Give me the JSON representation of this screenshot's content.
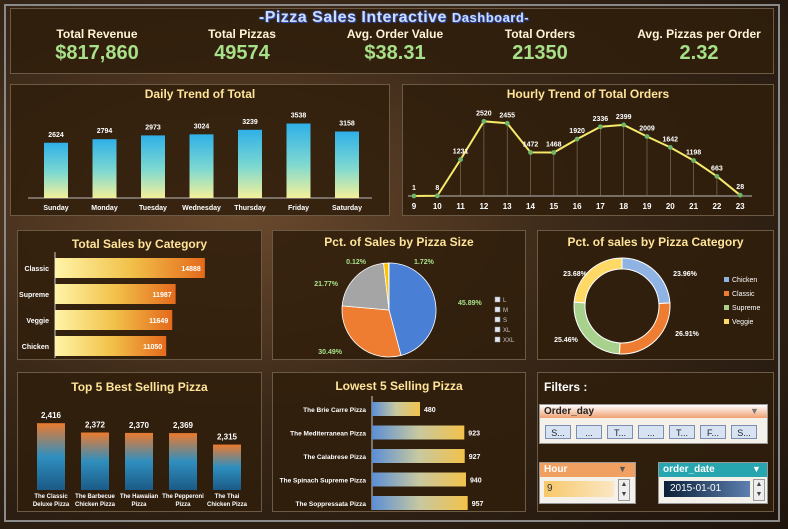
{
  "dashboard": {
    "title": "-Pizza Sales Interactive",
    "title_sub": "Dashboard-",
    "kpis": [
      {
        "label": "Total Revenue",
        "value": "$817,860"
      },
      {
        "label": "Total Pizzas",
        "value": "49574"
      },
      {
        "label": "Avg. Order Value",
        "value": "$38.31"
      },
      {
        "label": "Total Orders",
        "value": "21350"
      },
      {
        "label": "Avg. Pizzas per Order",
        "value": "2.32"
      }
    ]
  },
  "chart_data": [
    {
      "type": "bar",
      "title": "Daily Trend of Total",
      "categories": [
        "Sunday",
        "Monday",
        "Tuesday",
        "Wednesday",
        "Thursday",
        "Friday",
        "Saturday"
      ],
      "values": [
        2624,
        2794,
        2973,
        3024,
        3239,
        3538,
        3158
      ]
    },
    {
      "type": "line",
      "title": "Hourly Trend of Total Orders",
      "x": [
        "9",
        "10",
        "11",
        "12",
        "13",
        "14",
        "15",
        "16",
        "17",
        "18",
        "19",
        "20",
        "21",
        "22",
        "23"
      ],
      "values": [
        1,
        8,
        1231,
        2520,
        2455,
        1472,
        1468,
        1920,
        2336,
        2399,
        2009,
        1642,
        1198,
        663,
        28
      ]
    },
    {
      "type": "bar",
      "orientation": "horizontal",
      "title": "Total Sales by Category",
      "categories": [
        "Classic",
        "Supreme",
        "Veggie",
        "Chicken"
      ],
      "values": [
        14888,
        11987,
        11649,
        11050
      ]
    },
    {
      "type": "pie",
      "title": "Pct. of Sales by Pizza Size",
      "labels": [
        "L",
        "M",
        "S",
        "XL",
        "XXL"
      ],
      "values": [
        45.89,
        30.49,
        21.77,
        1.72,
        0.12
      ],
      "value_labels": [
        "45.89%",
        "30.49%",
        "21.77%",
        "1.72%",
        "0.12%"
      ],
      "colors": [
        "#4a7fd6",
        "#ee7d31",
        "#a5a5a5",
        "#ffc000",
        "#5b9bd5"
      ]
    },
    {
      "type": "pie",
      "donut": true,
      "title": "Pct. of sales by Pizza Category",
      "labels": [
        "Chicken",
        "Classic",
        "Supreme",
        "Veggie"
      ],
      "values": [
        23.96,
        26.91,
        25.46,
        23.68
      ],
      "value_labels": [
        "23.96%",
        "26.91%",
        "25.46%",
        "23.68%"
      ],
      "colors": [
        "#8fb3e3",
        "#ee7d31",
        "#a9d18e",
        "#ffd966"
      ]
    },
    {
      "type": "bar",
      "title": "Top 5 Best Selling Pizza",
      "categories": [
        "The Classic Deluxe Pizza",
        "The Barbecue Chicken Pizza",
        "The Hawaiian Pizza",
        "The Pepperoni Pizza",
        "The Thai Chicken Pizza"
      ],
      "values": [
        2416,
        2372,
        2370,
        2369,
        2315
      ],
      "value_labels": [
        "2,416",
        "2,372",
        "2,370",
        "2,369",
        "2,315"
      ]
    },
    {
      "type": "bar",
      "orientation": "horizontal",
      "title": "Lowest 5 Selling Pizza",
      "categories": [
        "The Brie Carre Pizza",
        "The Mediterranean Pizza",
        "The Calabrese Pizza",
        "The Spinach Supreme Pizza",
        "The Soppressata Pizza"
      ],
      "values": [
        480,
        923,
        927,
        940,
        957
      ]
    }
  ],
  "filters": {
    "title": "Filters :",
    "order_day": {
      "label": "Order_day",
      "buttons": [
        "S...",
        "...",
        "T...",
        "...",
        "T...",
        "F...",
        "S..."
      ]
    },
    "hour": {
      "label": "Hour",
      "value": "9"
    },
    "order_date": {
      "label": "order_date",
      "value": "2015-01-01"
    }
  }
}
